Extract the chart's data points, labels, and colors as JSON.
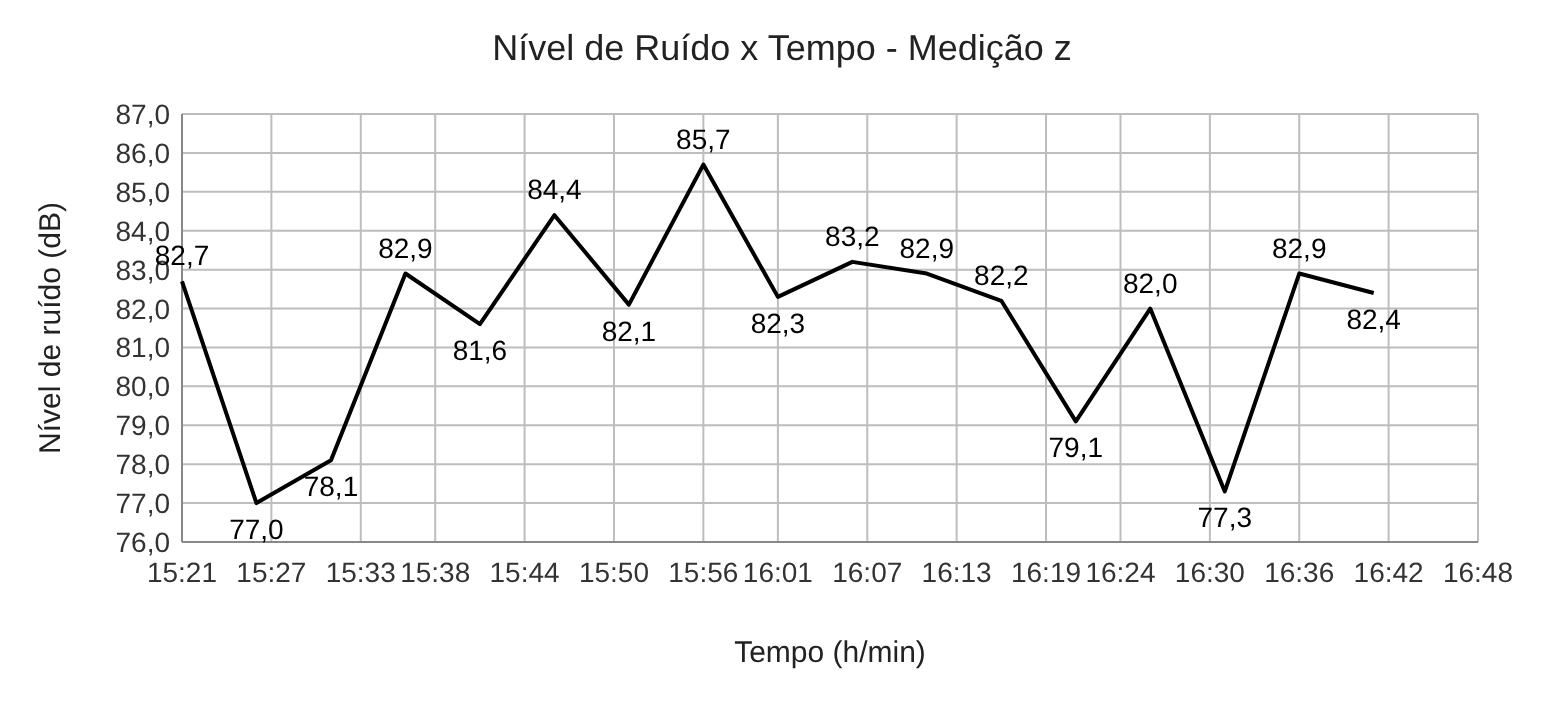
{
  "chart_data": {
    "type": "line",
    "title": "Nível de Ruído x Tempo - Medição z",
    "xlabel": "Tempo (h/min)",
    "ylabel": "Nível de ruído (dB)",
    "x": [
      15.35,
      15.4333,
      15.5167,
      15.6,
      15.6833,
      15.7667,
      15.85,
      15.9333,
      16.0167,
      16.1,
      16.1833,
      16.2667,
      16.35,
      16.4333,
      16.5167,
      16.6,
      16.6833
    ],
    "series": [
      {
        "color": "#000000",
        "values": [
          82.7,
          77.0,
          78.1,
          82.9,
          81.6,
          84.4,
          82.1,
          85.7,
          82.3,
          83.2,
          82.9,
          82.2,
          79.1,
          82.0,
          77.3,
          82.9,
          82.4
        ]
      }
    ],
    "value_labels": [
      "82,7",
      "77,0",
      "78,1",
      "82,9",
      "81,6",
      "84,4",
      "82,1",
      "85,7",
      "82,3",
      "83,2",
      "82,9",
      "82,2",
      "79,1",
      "82,0",
      "77,3",
      "82,9",
      "82,4"
    ],
    "xlim": [
      15.35,
      16.8
    ],
    "xticks": [
      {
        "value": 15.35,
        "label": "15:21"
      },
      {
        "value": 15.45,
        "label": "15:27"
      },
      {
        "value": 15.55,
        "label": "15:33"
      },
      {
        "value": 15.6333,
        "label": "15:38"
      },
      {
        "value": 15.7333,
        "label": "15:44"
      },
      {
        "value": 15.8333,
        "label": "15:50"
      },
      {
        "value": 15.9333,
        "label": "15:56"
      },
      {
        "value": 16.0167,
        "label": "16:01"
      },
      {
        "value": 16.1167,
        "label": "16:07"
      },
      {
        "value": 16.2167,
        "label": "16:13"
      },
      {
        "value": 16.3167,
        "label": "16:19"
      },
      {
        "value": 16.4,
        "label": "16:24"
      },
      {
        "value": 16.5,
        "label": "16:30"
      },
      {
        "value": 16.6,
        "label": "16:36"
      },
      {
        "value": 16.7,
        "label": "16:42"
      },
      {
        "value": 16.8,
        "label": "16:48"
      }
    ],
    "ylim": [
      76,
      87
    ],
    "yticks": [
      {
        "value": 76,
        "label": "76,0"
      },
      {
        "value": 77,
        "label": "77,0"
      },
      {
        "value": 78,
        "label": "78,0"
      },
      {
        "value": 79,
        "label": "79,0"
      },
      {
        "value": 80,
        "label": "80,0"
      },
      {
        "value": 81,
        "label": "81,0"
      },
      {
        "value": 82,
        "label": "82,0"
      },
      {
        "value": 83,
        "label": "83,0"
      },
      {
        "value": 84,
        "label": "84,0"
      },
      {
        "value": 85,
        "label": "85,0"
      },
      {
        "value": 86,
        "label": "86,0"
      },
      {
        "value": 87,
        "label": "87,0"
      }
    ],
    "grid": true,
    "marker": "none",
    "line_style": "solid"
  }
}
